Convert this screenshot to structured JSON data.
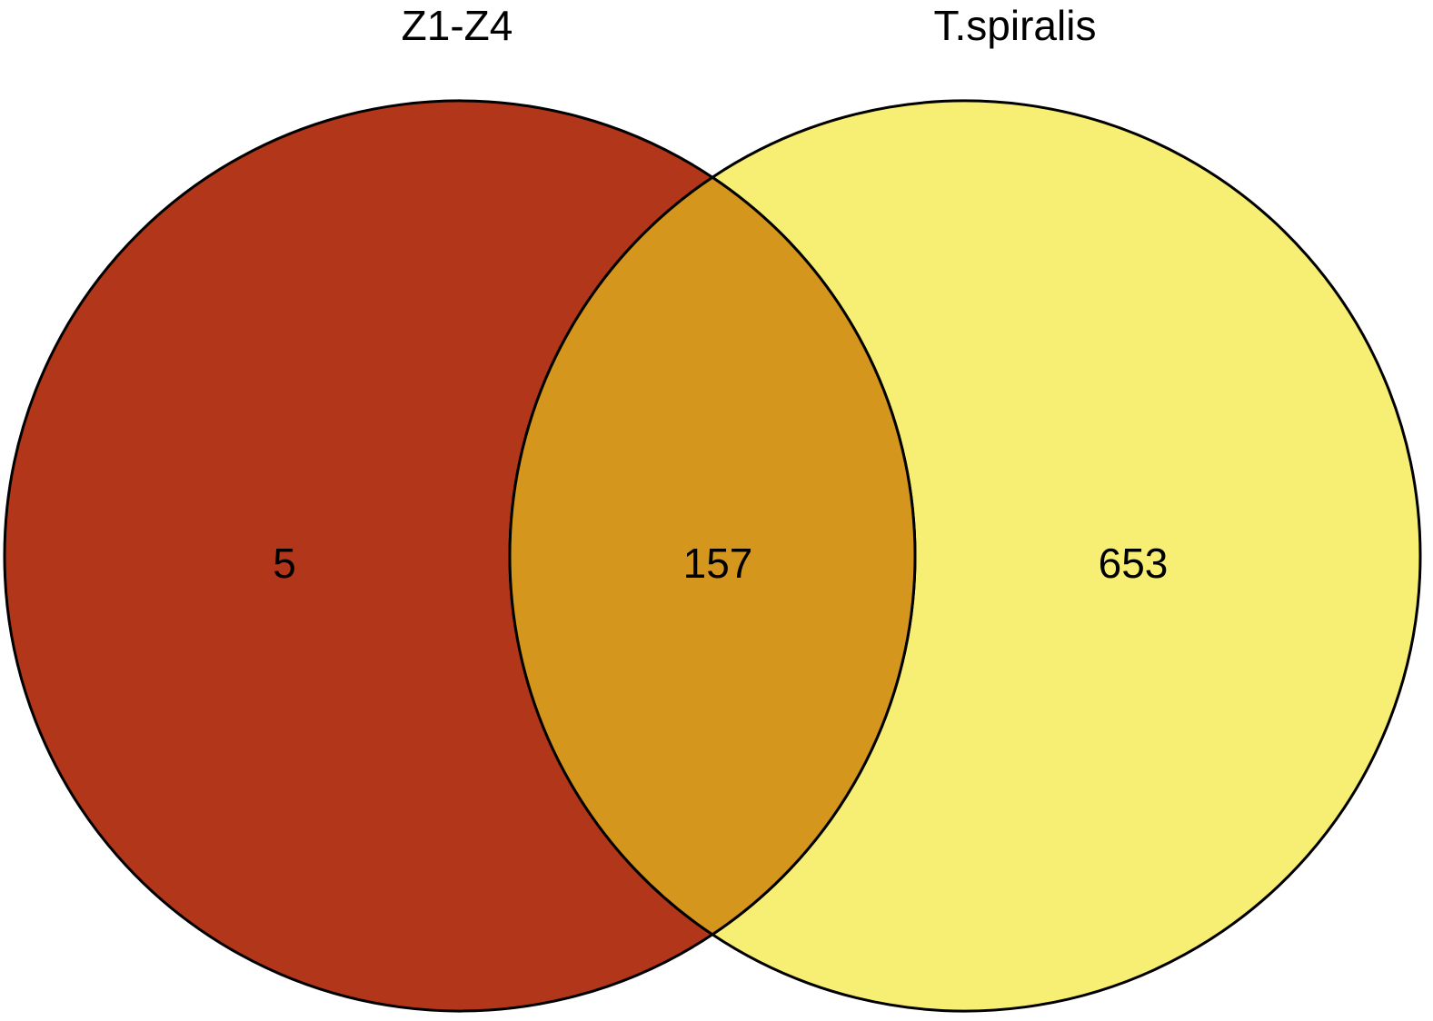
{
  "chart_data": {
    "type": "venn",
    "sets": [
      {
        "name": "Z1-Z4",
        "color": "#b2361a"
      },
      {
        "name": "T.spiralis",
        "color": "#f7ef73"
      }
    ],
    "overlap_color": "#d4961c",
    "values": [
      5,
      157,
      653
    ]
  }
}
